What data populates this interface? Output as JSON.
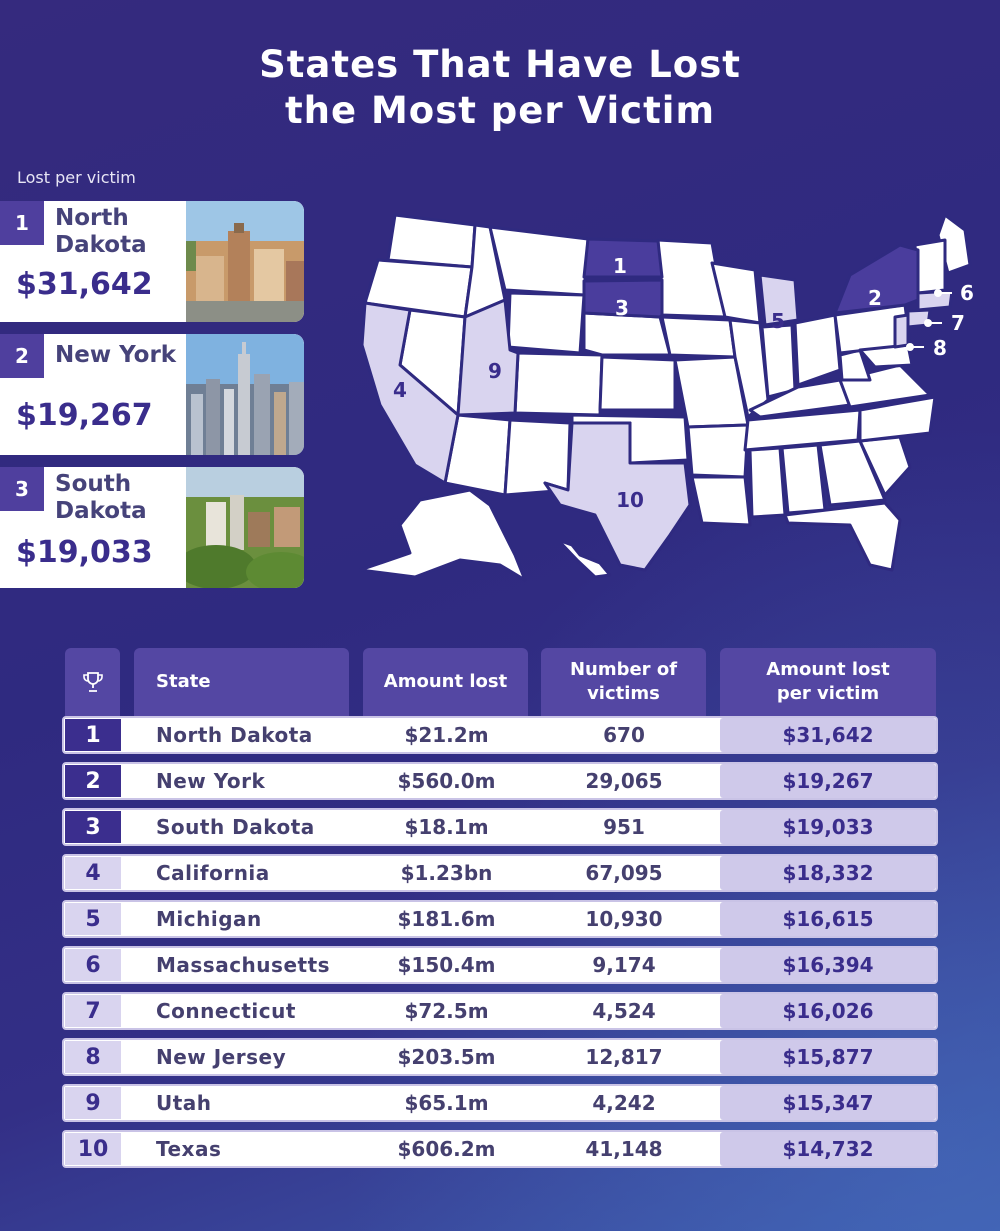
{
  "title_line1": "States That Have Lost",
  "title_line2": "the Most per Victim",
  "lost_label": "Lost per victim",
  "top3": [
    {
      "rank": "1",
      "name_line1": "North",
      "name_line2": "Dakota",
      "amount": "$31,642"
    },
    {
      "rank": "2",
      "name_line1": "New York",
      "name_line2": "",
      "amount": "$19,267"
    },
    {
      "rank": "3",
      "name_line1": "South",
      "name_line2": "Dakota",
      "amount": "$19,033"
    }
  ],
  "map_labels": [
    "1",
    "2",
    "3",
    "4",
    "5",
    "6",
    "7",
    "8",
    "9",
    "10"
  ],
  "colors": {
    "highlight_dark": "#4a3d9d",
    "highlight_light": "#d9d4ef",
    "accent_light": "#cfc9ea"
  },
  "table": {
    "headers": {
      "rank_icon": "trophy-icon",
      "state": "State",
      "amount_lost": "Amount lost",
      "victims_line1": "Number of",
      "victims_line2": "victims",
      "per_victim_line1": "Amount lost",
      "per_victim_line2": "per victim"
    },
    "rows": [
      {
        "rank": "1",
        "state": "North Dakota",
        "amount_lost": "$21.2m",
        "victims": "670",
        "per_victim": "$31,642"
      },
      {
        "rank": "2",
        "state": "New York",
        "amount_lost": "$560.0m",
        "victims": "29,065",
        "per_victim": "$19,267"
      },
      {
        "rank": "3",
        "state": "South Dakota",
        "amount_lost": "$18.1m",
        "victims": "951",
        "per_victim": "$19,033"
      },
      {
        "rank": "4",
        "state": "California",
        "amount_lost": "$1.23bn",
        "victims": "67,095",
        "per_victim": "$18,332"
      },
      {
        "rank": "5",
        "state": "Michigan",
        "amount_lost": "$181.6m",
        "victims": "10,930",
        "per_victim": "$16,615"
      },
      {
        "rank": "6",
        "state": "Massachusetts",
        "amount_lost": "$150.4m",
        "victims": "9,174",
        "per_victim": "$16,394"
      },
      {
        "rank": "7",
        "state": "Connecticut",
        "amount_lost": "$72.5m",
        "victims": "4,524",
        "per_victim": "$16,026"
      },
      {
        "rank": "8",
        "state": "New Jersey",
        "amount_lost": "$203.5m",
        "victims": "12,817",
        "per_victim": "$15,877"
      },
      {
        "rank": "9",
        "state": "Utah",
        "amount_lost": "$65.1m",
        "victims": "4,242",
        "per_victim": "$15,347"
      },
      {
        "rank": "10",
        "state": "Texas",
        "amount_lost": "$606.2m",
        "victims": "41,148",
        "per_victim": "$14,732"
      }
    ]
  }
}
